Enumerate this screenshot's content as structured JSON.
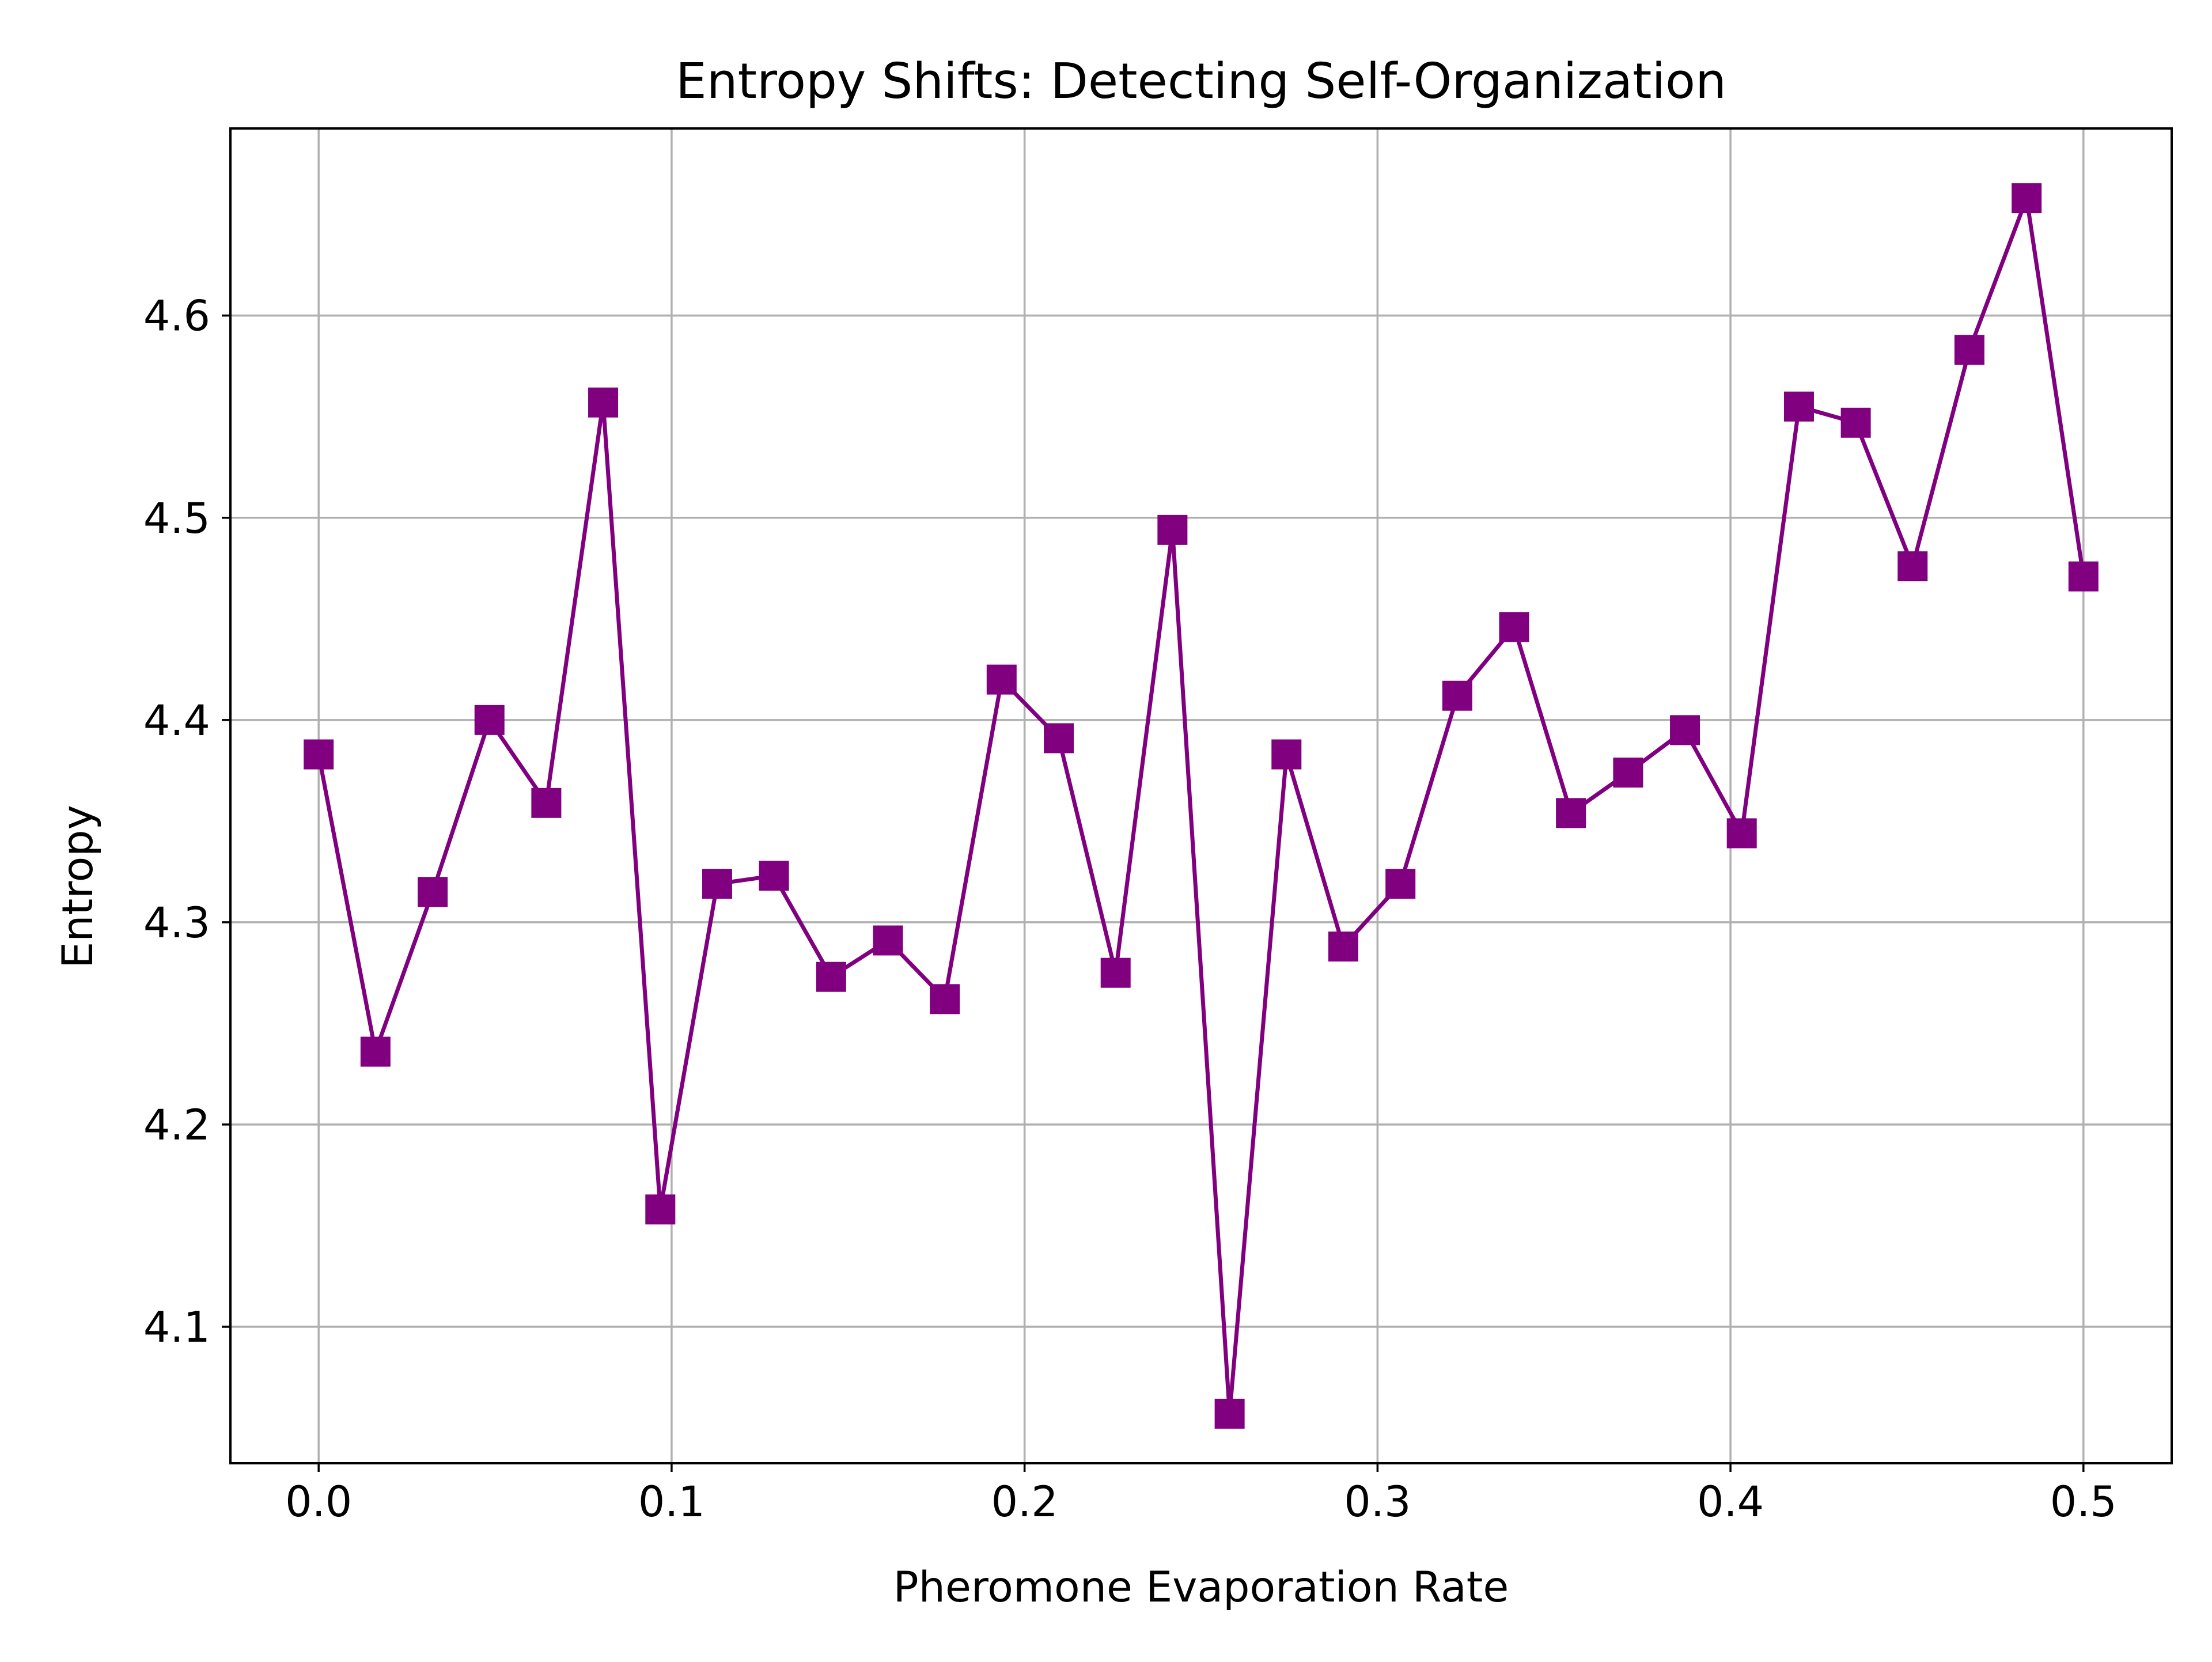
{
  "chart_data": {
    "type": "line",
    "title": "Entropy Shifts: Detecting Self-Organization",
    "xlabel": "Pheromone Evaporation Rate",
    "ylabel": "Entropy",
    "xlim": [
      -0.025,
      0.525
    ],
    "ylim": [
      4.0325,
      4.6925
    ],
    "xticks": [
      0.0,
      0.1,
      0.2,
      0.3,
      0.4,
      0.5
    ],
    "xtick_labels": [
      "0.0",
      "0.1",
      "0.2",
      "0.3",
      "0.4",
      "0.5"
    ],
    "yticks": [
      4.1,
      4.2,
      4.3,
      4.4,
      4.5,
      4.6
    ],
    "ytick_labels": [
      "4.1",
      "4.2",
      "4.3",
      "4.4",
      "4.5",
      "4.6"
    ],
    "grid": true,
    "line_color": "#800080",
    "marker": "square",
    "series": [
      {
        "x": [
          0.0,
          0.0161,
          0.0323,
          0.0484,
          0.0645,
          0.0806,
          0.0968,
          0.1129,
          0.129,
          0.1452,
          0.1613,
          0.1774,
          0.1935,
          0.2097,
          0.2258,
          0.2419,
          0.2581,
          0.2742,
          0.2903,
          0.3065,
          0.3226,
          0.3387,
          0.3548,
          0.371,
          0.3871,
          0.4032,
          0.4194,
          0.4355,
          0.4516,
          0.4677,
          0.4839,
          0.5
        ],
        "values": [
          4.383,
          4.236,
          4.315,
          4.4,
          4.359,
          4.557,
          4.158,
          4.319,
          4.323,
          4.273,
          4.291,
          4.262,
          4.42,
          4.391,
          4.275,
          4.494,
          4.057,
          4.383,
          4.288,
          4.319,
          4.412,
          4.446,
          4.354,
          4.374,
          4.395,
          4.344,
          4.555,
          4.547,
          4.476,
          4.583,
          4.658,
          4.471
        ]
      }
    ]
  }
}
